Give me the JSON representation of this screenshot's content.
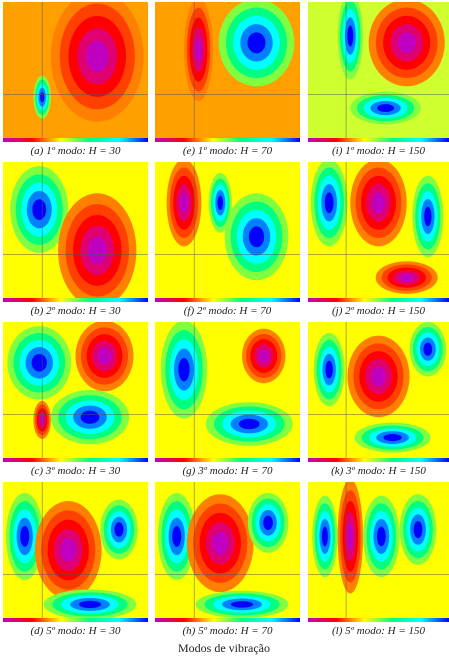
{
  "panels": [
    {
      "caption": "(a) 1º modo: H = 30"
    },
    {
      "caption": "(e) 1º modo: H = 70"
    },
    {
      "caption": "(i) 1º modo: H = 150"
    },
    {
      "caption": "(b) 2º modo: H = 30"
    },
    {
      "caption": "(f) 2º modo: H = 70"
    },
    {
      "caption": "(j) 2º modo: H = 150"
    },
    {
      "caption": "(c) 3º modo: H = 30"
    },
    {
      "caption": "(g) 3º modo: H = 70"
    },
    {
      "caption": "(k) 3º modo: H = 150"
    },
    {
      "caption": "(d) 5º modo: H = 30"
    },
    {
      "caption": "(h) 5º modo: H = 70"
    },
    {
      "caption": "(l) 5º modo: H = 150"
    }
  ],
  "caption": "Modos de vibração"
}
